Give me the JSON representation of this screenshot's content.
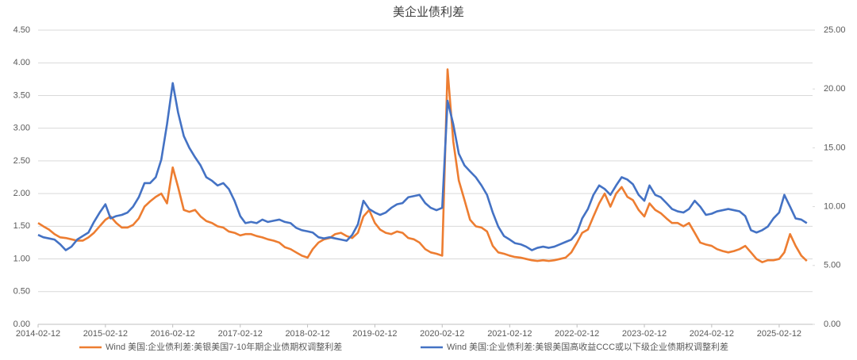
{
  "chart_data": {
    "type": "line",
    "title": "美企业债利差",
    "x": [
      "2014-02-12",
      "2014-03-12",
      "2014-04-12",
      "2014-05-12",
      "2014-06-12",
      "2014-07-12",
      "2014-08-12",
      "2014-09-12",
      "2014-10-12",
      "2014-11-12",
      "2014-12-12",
      "2015-01-12",
      "2015-02-12",
      "2015-03-12",
      "2015-04-12",
      "2015-05-12",
      "2015-06-12",
      "2015-07-12",
      "2015-08-12",
      "2015-09-12",
      "2015-10-12",
      "2015-11-12",
      "2015-12-12",
      "2016-01-12",
      "2016-02-12",
      "2016-03-12",
      "2016-04-12",
      "2016-05-12",
      "2016-06-12",
      "2016-07-12",
      "2016-08-12",
      "2016-09-12",
      "2016-10-12",
      "2016-11-12",
      "2016-12-12",
      "2017-01-12",
      "2017-02-12",
      "2017-03-12",
      "2017-04-12",
      "2017-05-12",
      "2017-06-12",
      "2017-07-12",
      "2017-08-12",
      "2017-09-12",
      "2017-10-12",
      "2017-11-12",
      "2017-12-12",
      "2018-01-12",
      "2018-02-12",
      "2018-03-12",
      "2018-04-12",
      "2018-05-12",
      "2018-06-12",
      "2018-07-12",
      "2018-08-12",
      "2018-09-12",
      "2018-10-12",
      "2018-11-12",
      "2018-12-12",
      "2019-01-12",
      "2019-02-12",
      "2019-03-12",
      "2019-04-12",
      "2019-05-12",
      "2019-06-12",
      "2019-07-12",
      "2019-08-12",
      "2019-09-12",
      "2019-10-12",
      "2019-11-12",
      "2019-12-12",
      "2020-01-12",
      "2020-02-12",
      "2020-03-12",
      "2020-04-12",
      "2020-05-12",
      "2020-06-12",
      "2020-07-12",
      "2020-08-12",
      "2020-09-12",
      "2020-10-12",
      "2020-11-12",
      "2020-12-12",
      "2021-01-12",
      "2021-02-12",
      "2021-03-12",
      "2021-04-12",
      "2021-05-12",
      "2021-06-12",
      "2021-07-12",
      "2021-08-12",
      "2021-09-12",
      "2021-10-12",
      "2021-11-12",
      "2021-12-12",
      "2022-01-12",
      "2022-02-12",
      "2022-03-12",
      "2022-04-12",
      "2022-05-12",
      "2022-06-12",
      "2022-07-12",
      "2022-08-12",
      "2022-09-12",
      "2022-10-12",
      "2022-11-12",
      "2022-12-12",
      "2023-01-12",
      "2023-02-12",
      "2023-03-12",
      "2023-04-12",
      "2023-05-12",
      "2023-06-12",
      "2023-07-12",
      "2023-08-12",
      "2023-09-12",
      "2023-10-12",
      "2023-11-12",
      "2023-12-12",
      "2024-01-12",
      "2024-02-12",
      "2024-03-12",
      "2024-04-12",
      "2024-05-12",
      "2024-06-12",
      "2024-07-12",
      "2024-08-12",
      "2024-09-12",
      "2024-10-12",
      "2024-11-12",
      "2024-12-12",
      "2025-01-12",
      "2025-02-12",
      "2025-03-12",
      "2025-04-12",
      "2025-05-12",
      "2025-06-12",
      "2025-07-12"
    ],
    "xlim": [
      "2014-02-12",
      "2025-08-12"
    ],
    "xticks": [
      "2014-02-12",
      "2015-02-12",
      "2016-02-12",
      "2017-02-12",
      "2018-02-12",
      "2019-02-12",
      "2020-02-12",
      "2021-02-12",
      "2022-02-12",
      "2023-02-12",
      "2024-02-12",
      "2025-02-12"
    ],
    "ylim": [
      0,
      4.5
    ],
    "yticks": [
      {
        "value": 0,
        "label": "0.00"
      },
      {
        "value": 0.5,
        "label": "0.50"
      },
      {
        "value": 1,
        "label": "1.00"
      },
      {
        "value": 1.5,
        "label": "1.50"
      },
      {
        "value": 2,
        "label": "2.00"
      },
      {
        "value": 2.5,
        "label": "2.50"
      },
      {
        "value": 3,
        "label": "3.00"
      },
      {
        "value": 3.5,
        "label": "3.50"
      },
      {
        "value": 4,
        "label": "4.00"
      },
      {
        "value": 4.5,
        "label": "4.50"
      }
    ],
    "y2lim": [
      0,
      25
    ],
    "y2ticks": [
      {
        "value": 0,
        "label": "0.00"
      },
      {
        "value": 5,
        "label": "5.00"
      },
      {
        "value": 10,
        "label": "10.00"
      },
      {
        "value": 15,
        "label": "15.00"
      },
      {
        "value": 20,
        "label": "20.00"
      },
      {
        "value": 25,
        "label": "25.00"
      }
    ],
    "grid": true,
    "legend": "bottom",
    "series": [
      {
        "name": "Wind 美国:企业债利差:美银美国7-10年期企业债期权调整利差",
        "color": "#ED7D31",
        "values": [
          1.55,
          1.5,
          1.45,
          1.38,
          1.33,
          1.32,
          1.3,
          1.28,
          1.28,
          1.33,
          1.4,
          1.5,
          1.6,
          1.65,
          1.55,
          1.48,
          1.48,
          1.52,
          1.62,
          1.8,
          1.88,
          1.95,
          2.0,
          1.85,
          2.4,
          2.1,
          1.75,
          1.72,
          1.75,
          1.65,
          1.58,
          1.55,
          1.5,
          1.48,
          1.42,
          1.4,
          1.36,
          1.38,
          1.38,
          1.35,
          1.33,
          1.3,
          1.28,
          1.25,
          1.18,
          1.15,
          1.1,
          1.05,
          1.02,
          1.15,
          1.25,
          1.3,
          1.32,
          1.38,
          1.4,
          1.35,
          1.32,
          1.4,
          1.65,
          1.75,
          1.55,
          1.45,
          1.4,
          1.38,
          1.42,
          1.4,
          1.32,
          1.3,
          1.25,
          1.15,
          1.1,
          1.08,
          1.05,
          3.9,
          2.8,
          2.2,
          1.9,
          1.6,
          1.5,
          1.48,
          1.42,
          1.2,
          1.1,
          1.08,
          1.05,
          1.03,
          1.02,
          1.0,
          0.98,
          0.97,
          0.98,
          0.97,
          0.98,
          1.0,
          1.02,
          1.1,
          1.25,
          1.4,
          1.45,
          1.65,
          1.85,
          2.0,
          1.8,
          2.0,
          2.1,
          1.95,
          1.9,
          1.75,
          1.65,
          1.85,
          1.75,
          1.7,
          1.62,
          1.55,
          1.55,
          1.5,
          1.55,
          1.4,
          1.25,
          1.22,
          1.2,
          1.15,
          1.12,
          1.1,
          1.12,
          1.15,
          1.2,
          1.1,
          1.0,
          0.95,
          0.98,
          0.98,
          1.0,
          1.1,
          1.38,
          1.2,
          1.05,
          0.97
        ]
      },
      {
        "name": "Wind 美国:企业债利差:美银美国高收益CCC或以下级企业债期权调整利差",
        "color": "#4472C4",
        "axis": "y2",
        "values": [
          7.6,
          7.4,
          7.3,
          7.2,
          6.8,
          6.3,
          6.6,
          7.2,
          7.5,
          7.8,
          8.7,
          9.5,
          10.2,
          9.0,
          9.2,
          9.3,
          9.5,
          10.0,
          10.8,
          12.0,
          12.0,
          12.5,
          14.0,
          17.0,
          20.5,
          18.0,
          16.0,
          15.0,
          14.2,
          13.5,
          12.5,
          12.2,
          11.8,
          12.0,
          11.5,
          10.5,
          9.2,
          8.6,
          8.7,
          8.6,
          8.9,
          8.7,
          8.8,
          8.9,
          8.7,
          8.6,
          8.2,
          8.0,
          7.9,
          7.8,
          7.4,
          7.3,
          7.4,
          7.3,
          7.2,
          7.1,
          7.6,
          8.5,
          10.5,
          9.8,
          9.5,
          9.3,
          9.5,
          9.9,
          10.2,
          10.3,
          10.8,
          10.9,
          11.0,
          10.3,
          9.9,
          9.7,
          9.9,
          19.0,
          17.0,
          14.5,
          13.5,
          13.0,
          12.5,
          11.8,
          11.0,
          9.5,
          8.3,
          7.5,
          7.2,
          6.9,
          6.8,
          6.6,
          6.3,
          6.5,
          6.6,
          6.5,
          6.6,
          6.8,
          7.0,
          7.2,
          7.8,
          9.0,
          9.8,
          11.0,
          11.8,
          11.5,
          11.0,
          11.8,
          12.5,
          12.3,
          11.9,
          11.0,
          10.5,
          11.8,
          11.0,
          10.8,
          10.3,
          9.8,
          9.6,
          9.5,
          9.8,
          10.5,
          10.0,
          9.3,
          9.4,
          9.6,
          9.7,
          9.8,
          9.7,
          9.6,
          9.2,
          8.0,
          7.8,
          8.0,
          8.3,
          9.0,
          9.5,
          11.0,
          10.0,
          9.0,
          8.9,
          8.6
        ]
      }
    ]
  }
}
